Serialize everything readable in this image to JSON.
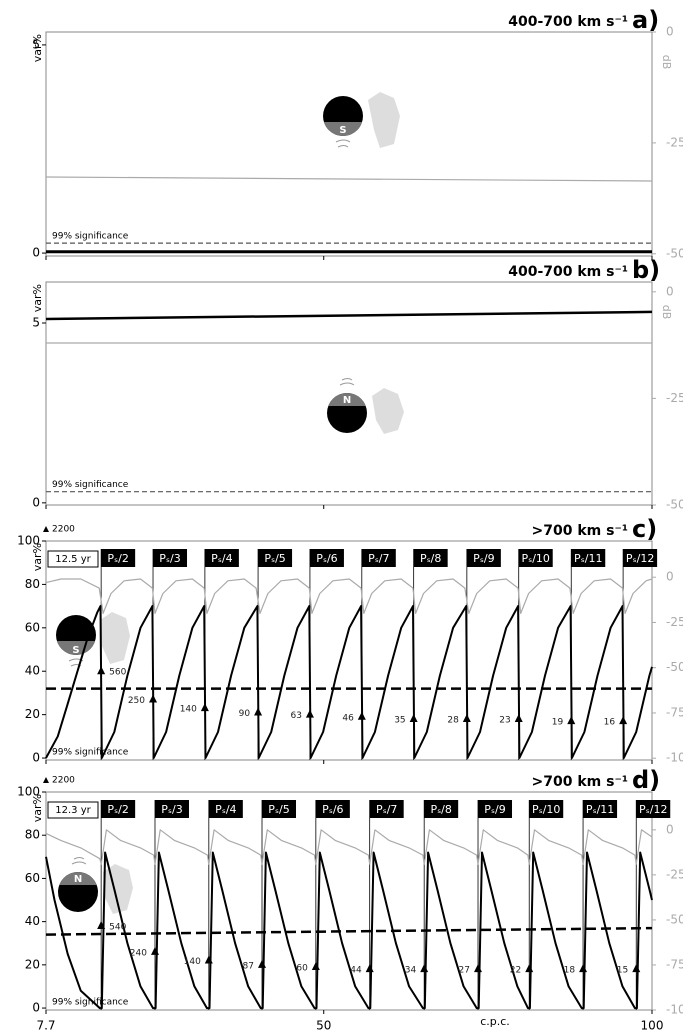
{
  "x_axis": {
    "xlim": [
      7.7,
      100
    ],
    "xticks": [
      7.7,
      50,
      100
    ],
    "xlabel": "c.p.c."
  },
  "chart_data": [
    {
      "type": "line",
      "title": "400-700 km s⁻¹",
      "panel": "a)",
      "ylabel": "var%",
      "y2label": "dB",
      "hemisphere": "S",
      "significance_label": "99% significance",
      "ylim": [
        -0.07,
        5.31
      ],
      "yticks": [
        0,
        5
      ],
      "y2lim": [
        -50.5,
        0
      ],
      "y2ticks": [
        0,
        -25,
        -50
      ],
      "series": [
        {
          "color": "#aaaaaa",
          "axis": "y2",
          "x": [
            7.7,
            100
          ],
          "values": [
            -32.7,
            -33.6
          ]
        },
        {
          "color": "#555555",
          "dash": true,
          "x": [
            7.7,
            100
          ],
          "values": [
            0.24,
            0.24
          ]
        },
        {
          "color": "#000000",
          "width": 3,
          "x": [
            7.7,
            100
          ],
          "values": [
            0.03,
            0.03
          ]
        }
      ]
    },
    {
      "type": "line",
      "title": "400-700 km s⁻¹",
      "panel": "b)",
      "ylabel": "var%",
      "y2label": "dB",
      "hemisphere": "N",
      "significance_label": "99% significance",
      "ylim": [
        -0.06,
        6.14
      ],
      "yticks": [
        0,
        5
      ],
      "y2lim": [
        -50,
        2.3
      ],
      "y2ticks": [
        0,
        -25,
        -50
      ],
      "series": [
        {
          "color": "#aaaaaa",
          "axis": "y2",
          "x": [
            7.7,
            100
          ],
          "values": [
            -12,
            -12
          ]
        },
        {
          "color": "#555555",
          "dash": true,
          "x": [
            7.7,
            100
          ],
          "values": [
            0.31,
            0.31
          ]
        },
        {
          "color": "#000000",
          "width": 2.5,
          "x": [
            7.7,
            100
          ],
          "values": [
            5.11,
            5.31
          ]
        }
      ]
    },
    {
      "type": "line",
      "title": ">700 km s⁻¹",
      "panel": "c)",
      "ylabel": "var%",
      "hemisphere": "S",
      "significance_label": "99% significance",
      "period_label": "12.5 yr",
      "top_marker_label": 2200,
      "ylim": [
        -0.9,
        100
      ],
      "yticks": [
        0,
        20,
        40,
        60,
        80,
        100
      ],
      "y2lim": [
        -101,
        20
      ],
      "y2ticks": [
        0,
        -25,
        -50,
        -75,
        -100
      ],
      "resonances": {
        "x": [
          16.1,
          24.0,
          31.9,
          40.0,
          47.9,
          55.8,
          63.7,
          71.8,
          79.7,
          87.7,
          95.6
        ],
        "labels": [
          "Pₛ/2",
          "Pₛ/3",
          "Pₛ/4",
          "Pₛ/5",
          "Pₛ/6",
          "Pₛ/7",
          "Pₛ/8",
          "Pₛ/9",
          "Pₛ/10",
          "Pₛ/11",
          "Pₛ/12"
        ],
        "marker_values": [
          40,
          27,
          23,
          21,
          20,
          19,
          18,
          18,
          18,
          17,
          17
        ],
        "marker_labels": [
          560,
          250,
          140,
          90,
          63,
          46,
          35,
          28,
          23,
          19,
          16
        ]
      },
      "series": [
        {
          "color": "#aaaaaa",
          "axis": "y2",
          "x": [
            7.7,
            10,
            13,
            15.8,
            16.4,
            17.6,
            19.6,
            22.1,
            23.9,
            24.3,
            25.5,
            27.5,
            30.0,
            31.8,
            32.2,
            33.4,
            35.4,
            37.9,
            39.7,
            40.3,
            41.5,
            43.5,
            46.0,
            47.8,
            48.2,
            49.4,
            51.4,
            53.9,
            55.7,
            56.1,
            57.3,
            59.3,
            61.8,
            63.6,
            64.0,
            65.2,
            67.2,
            69.7,
            71.5,
            72.1,
            73.3,
            75.3,
            77.8,
            79.6,
            80.0,
            81.2,
            83.2,
            85.7,
            87.5,
            88.0,
            89.2,
            91.2,
            93.7,
            95.5,
            95.9,
            97.1,
            99.1,
            100
          ],
          "values": [
            -3,
            -1,
            -1,
            -6,
            -20,
            -9,
            -2,
            -1,
            -6,
            -20,
            -9,
            -2,
            -1,
            -6,
            -20,
            -9,
            -2,
            -1,
            -6,
            -20,
            -9,
            -2,
            -1,
            -6,
            -20,
            -9,
            -2,
            -1,
            -6,
            -20,
            -9,
            -2,
            -1,
            -6,
            -20,
            -9,
            -2,
            -1,
            -6,
            -20,
            -9,
            -2,
            -1,
            -6,
            -20,
            -9,
            -2,
            -1,
            -6,
            -20,
            -9,
            -2,
            -1,
            -6,
            -20,
            -9,
            -2,
            -1
          ]
        },
        {
          "color": "#000000",
          "width": 2.5,
          "dash": true,
          "x": [
            7.7,
            100
          ],
          "values": [
            32,
            32
          ]
        },
        {
          "color": "#000000",
          "width": 2,
          "x": [
            7.7,
            9.5,
            11,
            12.5,
            14,
            15.5,
            16.0,
            16.2,
            18.1,
            20.1,
            22.1,
            23.9,
            24.1,
            26.0,
            28.0,
            30.0,
            31.8,
            32.0,
            33.9,
            35.9,
            37.9,
            39.9,
            40.1,
            42.0,
            44.0,
            46.0,
            47.8,
            48.0,
            49.9,
            51.9,
            53.9,
            55.7,
            55.9,
            57.8,
            59.8,
            61.8,
            63.6,
            63.8,
            65.7,
            67.7,
            69.7,
            71.7,
            71.9,
            73.8,
            75.8,
            77.8,
            79.6,
            79.8,
            81.7,
            83.7,
            85.7,
            87.6,
            87.8,
            89.7,
            91.7,
            93.7,
            95.5,
            95.7,
            97.6,
            99.6,
            100
          ],
          "values": [
            0,
            10,
            25,
            40,
            55,
            67,
            70,
            0,
            12,
            38,
            60,
            70,
            0,
            12,
            38,
            60,
            70,
            0,
            12,
            38,
            60,
            70,
            0,
            12,
            38,
            60,
            70,
            0,
            12,
            38,
            60,
            70,
            0,
            12,
            38,
            60,
            70,
            0,
            12,
            38,
            60,
            70,
            0,
            12,
            38,
            60,
            70,
            0,
            12,
            38,
            60,
            70,
            0,
            12,
            38,
            60,
            70,
            0,
            12,
            38,
            42
          ]
        }
      ]
    },
    {
      "type": "line",
      "title": ">700 km s⁻¹",
      "panel": "d)",
      "ylabel": "var%",
      "hemisphere": "N",
      "significance_label": "99% significance",
      "period_label": "12.3 yr",
      "top_marker_label": 2200,
      "ylim": [
        -0.9,
        100
      ],
      "yticks": [
        0,
        20,
        40,
        60,
        80,
        100
      ],
      "y2lim": [
        -100,
        21
      ],
      "y2ticks": [
        0,
        -25,
        -50,
        -75,
        -100
      ],
      "resonances": {
        "x": [
          16.1,
          24.3,
          32.5,
          40.6,
          48.8,
          57.0,
          65.3,
          73.5,
          81.3,
          89.5,
          97.6
        ],
        "labels": [
          "Pₛ/2",
          "Pₛ/3",
          "Pₛ/4",
          "Pₛ/5",
          "Pₛ/6",
          "Pₛ/7",
          "Pₛ/8",
          "Pₛ/9",
          "Pₛ/10",
          "Pₛ/11",
          "Pₛ/12"
        ],
        "marker_values": [
          38,
          26,
          22,
          20,
          19,
          18,
          18,
          18,
          18,
          18,
          18
        ],
        "marker_labels": [
          540,
          240,
          140,
          87,
          60,
          44,
          34,
          27,
          22,
          18,
          15
        ]
      },
      "series": [
        {
          "color": "#aaaaaa",
          "axis": "y2",
          "x": [
            7.7,
            10,
            13,
            15.9,
            16.1,
            16.9,
            19.1,
            22.1,
            24.1,
            24.3,
            25.1,
            27.3,
            30.3,
            32.3,
            32.5,
            33.3,
            35.5,
            38.5,
            40.4,
            40.6,
            41.4,
            43.6,
            46.6,
            48.6,
            48.8,
            49.6,
            51.8,
            54.8,
            56.8,
            57.0,
            57.8,
            60.0,
            63.0,
            65.1,
            65.3,
            66.1,
            68.3,
            71.3,
            73.3,
            73.5,
            74.3,
            76.5,
            79.5,
            81.1,
            81.3,
            82.1,
            84.3,
            87.3,
            89.3,
            89.5,
            90.3,
            92.5,
            95.5,
            97.4,
            97.6,
            98.4,
            100
          ],
          "values": [
            -2,
            -6,
            -10,
            -16,
            -19,
            0,
            -6,
            -10,
            -14,
            -19,
            0,
            -6,
            -10,
            -14,
            -19,
            0,
            -6,
            -10,
            -14,
            -19,
            0,
            -6,
            -10,
            -14,
            -19,
            0,
            -6,
            -10,
            -14,
            -19,
            0,
            -6,
            -10,
            -14,
            -19,
            0,
            -6,
            -10,
            -14,
            -19,
            0,
            -6,
            -10,
            -14,
            -19,
            0,
            -6,
            -10,
            -14,
            -19,
            0,
            -6,
            -10,
            -14,
            -19,
            0,
            -4
          ]
        },
        {
          "color": "#000000",
          "width": 2.5,
          "dash": true,
          "x": [
            7.7,
            100
          ],
          "values": [
            34,
            37
          ]
        },
        {
          "color": "#000000",
          "width": 2,
          "x": [
            7.7,
            9,
            11,
            13,
            15.9,
            16.2,
            16.7,
            18.1,
            20.1,
            22.1,
            24.0,
            24.4,
            24.9,
            26.3,
            28.3,
            30.3,
            32.2,
            32.6,
            33.1,
            34.5,
            36.5,
            38.5,
            40.4,
            40.7,
            41.2,
            42.6,
            44.6,
            46.6,
            48.6,
            48.9,
            49.4,
            50.8,
            52.8,
            54.8,
            56.8,
            57.1,
            57.6,
            59.0,
            61.0,
            63.0,
            65.1,
            65.4,
            65.9,
            67.3,
            69.3,
            71.3,
            73.3,
            73.6,
            74.1,
            75.5,
            77.5,
            79.5,
            81.1,
            81.4,
            81.9,
            83.3,
            85.3,
            87.3,
            89.3,
            89.6,
            90.1,
            91.5,
            93.5,
            95.5,
            97.4,
            97.7,
            98.2,
            99.6,
            100
          ],
          "values": [
            70,
            50,
            25,
            8,
            0,
            0,
            72,
            55,
            30,
            10,
            0,
            0,
            72,
            55,
            30,
            10,
            0,
            0,
            72,
            55,
            30,
            10,
            0,
            0,
            72,
            55,
            30,
            10,
            0,
            0,
            72,
            55,
            30,
            10,
            0,
            0,
            72,
            55,
            30,
            10,
            0,
            0,
            72,
            55,
            30,
            10,
            0,
            0,
            72,
            55,
            30,
            10,
            0,
            0,
            72,
            55,
            30,
            10,
            0,
            0,
            72,
            55,
            30,
            10,
            0,
            0,
            72,
            55,
            50
          ]
        }
      ]
    }
  ]
}
